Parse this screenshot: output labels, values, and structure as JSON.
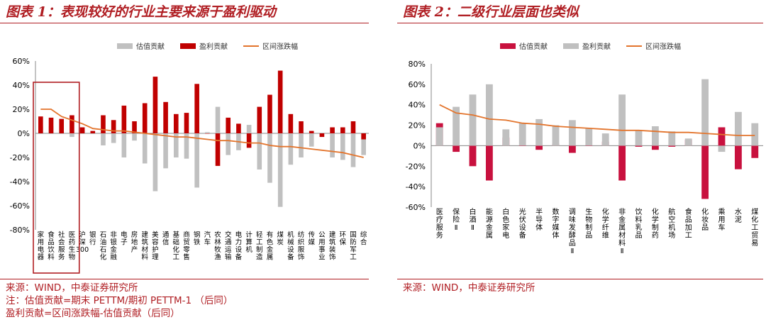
{
  "panels": [
    {
      "title": "图表 1：表现较好的行业主要来源于盈利驱动",
      "notes": [
        "来源：WIND，中泰证券研究所",
        "注：估值贡献=期末 PETTM/期初 PETTM-1 （后同）",
        "盈利贡献=区间涨跌幅-估值贡献（后同）"
      ]
    },
    {
      "title": "图表 2：二级行业层面也类似",
      "notes": [
        "来源：WIND，中泰证券研究所"
      ]
    }
  ],
  "chart_data": [
    {
      "type": "bar",
      "legend": [
        "估值贡献",
        "盈利贡献",
        "区间涨跌幅"
      ],
      "legend_position": "top",
      "categories": [
        "家用电器",
        "食品饮料",
        "社会服务",
        "医药生物",
        "沪深300",
        "银行",
        "石油石化",
        "非银金融",
        "电子",
        "房地产",
        "建筑材料",
        "美容护理",
        "通信",
        "基础化工",
        "商贸零售",
        "钢铁",
        "汽车",
        "农林牧渔",
        "交通运输",
        "电力设备",
        "计算机",
        "轻工制造",
        "有色金属",
        "煤炭",
        "机械设备",
        "纺织服饰",
        "传媒",
        "公用事业",
        "建筑装饰",
        "环保",
        "国防军工",
        "综合"
      ],
      "series": [
        {
          "name": "估值贡献",
          "color": "#c0c0c0",
          "values": [
            6,
            6,
            2,
            -3,
            3,
            1,
            -10,
            -8,
            -20,
            -6,
            -25,
            -48,
            -29,
            -20,
            -21,
            -45,
            1,
            22,
            -18,
            -14,
            7,
            -30,
            -41,
            -61,
            -26,
            -20,
            -11,
            -1,
            -20,
            -22,
            -28,
            -18
          ]
        },
        {
          "name": "盈利贡献",
          "color": "#c00000",
          "values": [
            14,
            13,
            12,
            15,
            5,
            2,
            15,
            11,
            23,
            10,
            25,
            47,
            26,
            16,
            17,
            41,
            0,
            -27,
            13,
            8,
            -12,
            22,
            32,
            52,
            16,
            10,
            2,
            -3,
            5,
            5,
            10,
            -5
          ]
        },
        {
          "name": "区间涨跌幅",
          "color": "#e3742c",
          "values": [
            20,
            20,
            14,
            11,
            8,
            4,
            3,
            2,
            2,
            1,
            0,
            -1,
            -2,
            -3,
            -3,
            -4,
            -5,
            -6,
            -6,
            -7,
            -8,
            -8,
            -10,
            -11,
            -11,
            -12,
            -13,
            -14,
            -15,
            -16,
            -18,
            -20
          ]
        }
      ],
      "ylim": [
        -80,
        60
      ],
      "yticks": [
        "60%",
        "40%",
        "20%",
        "0%",
        "-20%",
        "-40%",
        "-60%",
        "-80%"
      ],
      "grid": false,
      "highlight_categories": [
        "家用电器",
        "食品饮料",
        "社会服务",
        "医药生物"
      ]
    },
    {
      "type": "bar",
      "legend": [
        "估值贡献",
        "盈利贡献",
        "区间涨跌幅"
      ],
      "legend_position": "top",
      "categories": [
        "医疗服务",
        "保险Ⅱ",
        "白酒Ⅱ",
        "能源金属",
        "白色家电",
        "光伏设备",
        "半导体",
        "数字媒体",
        "调味发酵品Ⅱ",
        "生物制品",
        "化学纤维",
        "非金属材料Ⅱ",
        "饮料乳品",
        "化学制药",
        "航空机场",
        "食品加工",
        "化妆品",
        "乘用车",
        "水泥",
        "煤化工贸易"
      ],
      "series": [
        {
          "name": "估值贡献",
          "color": "#c8113e",
          "values": [
            22,
            -6,
            -20,
            -34,
            8,
            0,
            -4,
            2,
            -7,
            0,
            4,
            -34,
            -1,
            -4,
            -1,
            6,
            -52,
            18,
            -23,
            -12
          ]
        },
        {
          "name": "盈利贡献",
          "color": "#c0c0c0",
          "values": [
            18,
            38,
            50,
            60,
            16,
            22,
            26,
            20,
            25,
            17,
            12,
            50,
            15,
            19,
            14,
            7,
            65,
            -6,
            33,
            22
          ]
        },
        {
          "name": "区间涨跌幅",
          "color": "#e3742c",
          "values": [
            40,
            32,
            30,
            26,
            25,
            22,
            21,
            19,
            18,
            17,
            16,
            15,
            15,
            14,
            13,
            13,
            12,
            11,
            10,
            10
          ]
        }
      ],
      "ylim": [
        -60,
        80
      ],
      "yticks": [
        "80%",
        "60%",
        "40%",
        "20%",
        "0%",
        "-20%",
        "-40%",
        "-60%"
      ],
      "grid": false
    }
  ]
}
